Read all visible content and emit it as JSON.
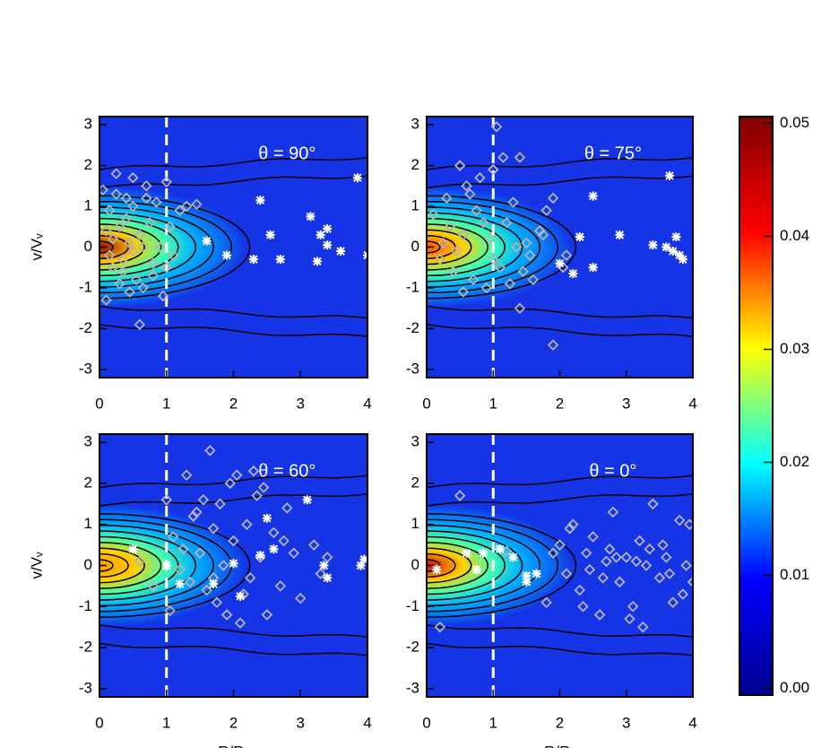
{
  "chart_data": [
    {
      "type": "scatter",
      "title": "θ = 90°",
      "ylabel": "v/Vᵥ",
      "xlim": [
        0,
        4
      ],
      "ylim": [
        -3.2,
        3.2
      ],
      "xticks": [
        0,
        1,
        2,
        3,
        4
      ],
      "yticks": [
        -3,
        -2,
        -1,
        0,
        1,
        2,
        3
      ],
      "reference_x": 1,
      "peak_color": "#a00000",
      "series": [
        {
          "marker": "diamond",
          "color": "#b4b4b4",
          "x": [
            0.05,
            0.1,
            0.15,
            0.2,
            0.25,
            0.3,
            0.35,
            0.4,
            0.45,
            0.5,
            0.55,
            0.6,
            0.65,
            0.7,
            0.75,
            0.8,
            0.85,
            0.9,
            0.95,
            1.0,
            1.05,
            1.1,
            1.2,
            1.3,
            0.3,
            0.4,
            0.5,
            0.6,
            0.2,
            0.1,
            0.7,
            0.8,
            0.5,
            0.35,
            0.65,
            1.45,
            0.25,
            0.45,
            1.0,
            0.15
          ],
          "values": [
            1.4,
            -1.3,
            0.9,
            -0.5,
            1.8,
            0.5,
            -0.3,
            1.2,
            0.1,
            1.7,
            -0.8,
            0.3,
            -1.0,
            1.5,
            0.6,
            -0.4,
            1.1,
            0.0,
            -1.2,
            1.6,
            0.5,
            -0.2,
            0.9,
            1.0,
            -0.9,
            0.7,
            -0.1,
            -1.9,
            0.2,
            0.4,
            1.2,
            -0.7,
            1.0,
            -0.6,
            0.0,
            1.05,
            1.3,
            -1.1,
            -0.5,
            -0.2
          ]
        },
        {
          "marker": "asterisk",
          "color": "#ffffff",
          "x": [
            1.6,
            1.9,
            2.3,
            2.4,
            2.55,
            2.7,
            3.15,
            3.25,
            3.3,
            3.4,
            3.4,
            3.6,
            3.85,
            4.0
          ],
          "values": [
            0.15,
            -0.2,
            -0.3,
            1.15,
            0.3,
            -0.3,
            0.75,
            -0.35,
            0.3,
            0.45,
            0.05,
            -0.1,
            1.7,
            -0.2
          ]
        }
      ]
    },
    {
      "type": "scatter",
      "title": "θ = 75°",
      "xlim": [
        0,
        4
      ],
      "ylim": [
        -3.2,
        3.2
      ],
      "xticks": [
        0,
        1,
        2,
        3,
        4
      ],
      "yticks": [
        -3,
        -2,
        -1,
        0,
        1,
        2,
        3
      ],
      "reference_x": 1,
      "peak_color": "#ff4a00",
      "series": [
        {
          "marker": "diamond",
          "color": "#b4b4b4",
          "x": [
            0.1,
            0.2,
            0.3,
            0.35,
            0.4,
            0.5,
            0.55,
            0.6,
            0.7,
            0.75,
            0.8,
            0.9,
            0.95,
            1.0,
            1.05,
            1.1,
            1.15,
            1.2,
            1.3,
            1.4,
            1.4,
            1.5,
            1.55,
            1.6,
            1.7,
            1.8,
            1.9,
            2.1,
            0.45,
            0.65,
            0.85,
            1.25,
            1.35,
            1.0,
            0.25,
            1.9,
            1.45,
            0.55,
            1.75,
            2.05
          ],
          "values": [
            0.8,
            -0.3,
            1.2,
            0.5,
            -0.6,
            2.0,
            0.3,
            1.5,
            -0.8,
            0.9,
            1.7,
            -1.0,
            0.2,
            1.9,
            2.95,
            -0.5,
            2.2,
            0.6,
            1.1,
            2.2,
            -1.5,
            0.1,
            -0.2,
            -0.8,
            0.4,
            0.9,
            -2.4,
            -0.2,
            -0.1,
            1.3,
            0.6,
            -0.9,
            0.0,
            -0.3,
            0.1,
            1.2,
            -0.6,
            -1.1,
            0.3,
            -0.5
          ]
        },
        {
          "marker": "asterisk",
          "color": "#ffffff",
          "x": [
            2.5,
            3.65,
            2.3,
            2.9,
            3.4,
            3.6,
            3.7,
            3.75,
            3.8,
            3.85,
            2.0,
            2.2,
            2.5
          ],
          "values": [
            1.25,
            1.75,
            0.25,
            0.3,
            0.05,
            0.0,
            -0.1,
            0.25,
            -0.2,
            -0.3,
            -0.4,
            -0.65,
            -0.5
          ]
        }
      ]
    },
    {
      "type": "scatter",
      "title": "θ = 60°",
      "ylabel": "v/Vᵥ",
      "xlabel": "R/Rᵥ",
      "xlim": [
        0,
        4
      ],
      "ylim": [
        -3.2,
        3.2
      ],
      "xticks": [
        0,
        1,
        2,
        3,
        4
      ],
      "yticks": [
        -3,
        -2,
        -1,
        0,
        1,
        2,
        3
      ],
      "reference_x": 1,
      "peak_color": "#ff9a00",
      "series": [
        {
          "marker": "diamond",
          "color": "#b4b4b4",
          "x": [
            0.6,
            0.8,
            1.0,
            1.1,
            1.2,
            1.3,
            1.4,
            1.5,
            1.55,
            1.6,
            1.65,
            1.7,
            1.75,
            1.8,
            1.85,
            1.9,
            2.0,
            2.05,
            2.1,
            2.2,
            2.25,
            2.3,
            2.4,
            2.5,
            2.6,
            2.7,
            2.8,
            2.9,
            3.0,
            3.2,
            3.4,
            1.35,
            1.45,
            1.95,
            2.15,
            2.35,
            1.25,
            1.05,
            3.3,
            2.75,
            1.7,
            2.45
          ],
          "values": [
            0.1,
            -0.5,
            1.6,
            0.7,
            -0.1,
            2.2,
            1.2,
            0.3,
            1.6,
            -0.6,
            2.8,
            0.9,
            -0.9,
            1.5,
            0.0,
            -1.2,
            0.6,
            2.2,
            -1.4,
            1.0,
            -0.3,
            2.3,
            0.2,
            -1.2,
            0.8,
            -0.5,
            1.4,
            0.3,
            -0.8,
            0.5,
            0.2,
            -0.4,
            1.3,
            2.0,
            -0.7,
            1.7,
            0.4,
            -1.1,
            -0.2,
            0.6,
            -0.3,
            1.9
          ]
        },
        {
          "marker": "asterisk",
          "color": "#ffffff",
          "x": [
            0.5,
            1.0,
            1.2,
            1.7,
            2.0,
            2.1,
            2.4,
            2.5,
            2.6,
            3.1,
            3.35,
            3.4,
            3.9,
            3.95
          ],
          "values": [
            0.4,
            0.0,
            -0.45,
            -0.45,
            0.05,
            -0.75,
            0.25,
            1.15,
            0.4,
            1.6,
            0.0,
            -0.3,
            0.0,
            0.15
          ]
        }
      ]
    },
    {
      "type": "scatter",
      "title": "θ = 0°",
      "xlabel": "R/Rᵥ",
      "xlim": [
        0,
        4
      ],
      "ylim": [
        -3.2,
        3.2
      ],
      "xticks": [
        0,
        1,
        2,
        3,
        4
      ],
      "yticks": [
        -3,
        -2,
        -1,
        0,
        1,
        2,
        3
      ],
      "reference_x": 1,
      "peak_color": "#d80000",
      "series": [
        {
          "marker": "diamond",
          "color": "#b4b4b4",
          "x": [
            0.2,
            0.5,
            1.2,
            1.8,
            2.0,
            2.1,
            2.2,
            2.3,
            2.4,
            2.5,
            2.6,
            2.7,
            2.8,
            2.9,
            3.0,
            3.1,
            3.2,
            3.3,
            3.4,
            3.5,
            3.6,
            3.7,
            3.8,
            3.9,
            4.0,
            2.15,
            2.45,
            2.75,
            3.05,
            3.35,
            3.65,
            3.95,
            2.35,
            2.85,
            3.25,
            3.55,
            3.85,
            1.9,
            2.65,
            3.15
          ],
          "values": [
            -1.5,
            1.7,
            0.35,
            -0.9,
            0.5,
            -0.2,
            1.0,
            -0.6,
            0.3,
            0.7,
            -1.2,
            0.1,
            1.3,
            -0.4,
            0.2,
            -1.0,
            0.6,
            0.0,
            1.5,
            -0.3,
            0.2,
            -0.9,
            1.1,
            0.0,
            -0.4,
            0.9,
            -0.1,
            0.4,
            -1.3,
            0.4,
            -0.2,
            1.0,
            -1.0,
            0.2,
            -1.5,
            0.5,
            -0.7,
            0.3,
            -0.3,
            0.1
          ]
        },
        {
          "marker": "asterisk",
          "color": "#ffffff",
          "x": [
            0.15,
            0.6,
            0.75,
            0.85,
            1.1,
            1.3,
            1.5,
            1.5,
            1.65
          ],
          "values": [
            -0.1,
            0.3,
            -0.1,
            0.3,
            0.4,
            0.2,
            -0.25,
            -0.4,
            -0.2
          ]
        }
      ]
    },
    {
      "type": "colorbar",
      "ylim": [
        -0.0006,
        0.0506
      ],
      "yticks": [
        {
          "value": 0,
          "label": "0.00"
        },
        {
          "value": 0.01,
          "label": "0.01"
        },
        {
          "value": 0.02,
          "label": "0.02"
        },
        {
          "value": 0.03,
          "label": "0.03"
        },
        {
          "value": 0.04,
          "label": "0.04"
        },
        {
          "value": 0.05,
          "label": "0.05"
        }
      ],
      "colors": [
        "#00008f",
        "#0000ff",
        "#00ffff",
        "#ffff00",
        "#ff0000",
        "#800000"
      ]
    }
  ]
}
